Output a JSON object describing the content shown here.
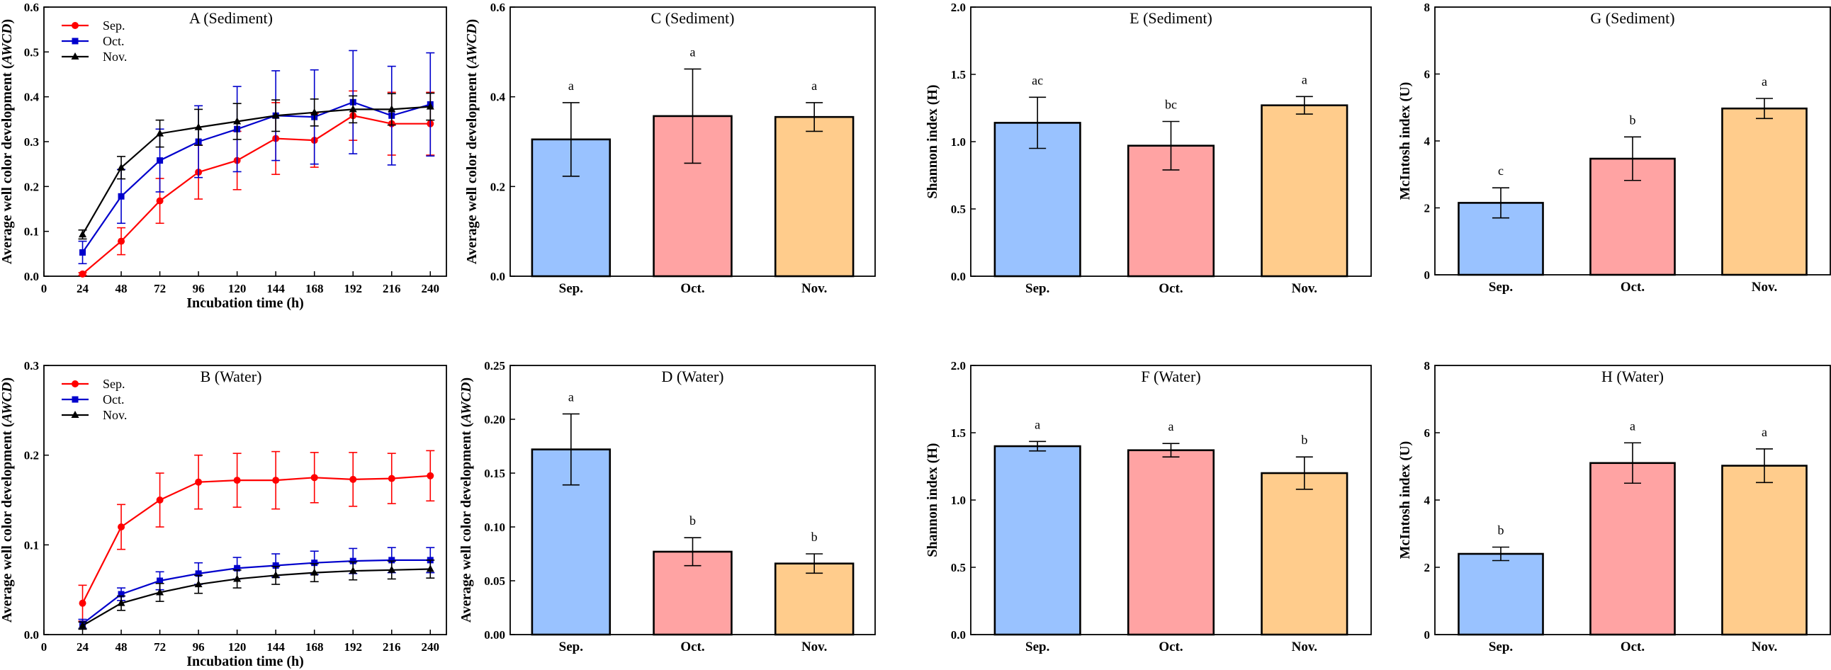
{
  "colors": {
    "sep": "#ff0000",
    "oct": "#0000cc",
    "nov": "#000000",
    "bar_sep": "#99c2ff",
    "bar_oct": "#ffa3a3",
    "bar_nov": "#ffcc8c"
  },
  "chart_data": [
    {
      "id": "A",
      "type": "line",
      "title": "A (Sediment)",
      "xlabel": "Incubation time (h)",
      "ylabel_main": "Average well color development (",
      "ylabel_italic": "AWCD",
      "ylabel_close": ")",
      "x": [
        24,
        48,
        72,
        96,
        120,
        144,
        168,
        192,
        216,
        240
      ],
      "xlim": [
        0,
        250
      ],
      "ylim": [
        0,
        0.6
      ],
      "xticks": [
        "0",
        "24",
        "48",
        "72",
        "96",
        "120",
        "144",
        "168",
        "192",
        "216",
        "240"
      ],
      "yticks": [
        "0.0",
        "0.1",
        "0.2",
        "0.3",
        "0.4",
        "0.5",
        "0.6"
      ],
      "series": [
        {
          "name": "Sep.",
          "color_key": "sep",
          "marker": "circle",
          "values": [
            0.005,
            0.078,
            0.168,
            0.232,
            0.258,
            0.307,
            0.303,
            0.358,
            0.34,
            0.34
          ],
          "errors": [
            0.003,
            0.03,
            0.05,
            0.06,
            0.065,
            0.08,
            0.06,
            0.055,
            0.07,
            0.07
          ]
        },
        {
          "name": "Oct.",
          "color_key": "oct",
          "marker": "square",
          "values": [
            0.053,
            0.178,
            0.258,
            0.3,
            0.328,
            0.358,
            0.355,
            0.388,
            0.358,
            0.383
          ],
          "errors": [
            0.025,
            0.06,
            0.07,
            0.08,
            0.095,
            0.1,
            0.105,
            0.115,
            0.11,
            0.115
          ]
        },
        {
          "name": "Nov.",
          "color_key": "nov",
          "marker": "triangle",
          "values": [
            0.093,
            0.242,
            0.318,
            0.332,
            0.345,
            0.358,
            0.365,
            0.372,
            0.372,
            0.378
          ],
          "errors": [
            0.01,
            0.025,
            0.03,
            0.04,
            0.04,
            0.035,
            0.03,
            0.03,
            0.035,
            0.03
          ]
        }
      ]
    },
    {
      "id": "B",
      "type": "line",
      "title": "B (Water)",
      "xlabel": "Incubation time (h)",
      "ylabel_main": "Average well color development (",
      "ylabel_italic": "AWCD",
      "ylabel_close": ")",
      "x": [
        24,
        48,
        72,
        96,
        120,
        144,
        168,
        192,
        216,
        240
      ],
      "xlim": [
        0,
        250
      ],
      "ylim": [
        0,
        0.3
      ],
      "xticks": [
        "0",
        "24",
        "48",
        "72",
        "96",
        "120",
        "144",
        "168",
        "192",
        "216",
        "240"
      ],
      "yticks": [
        "0.0",
        "0.1",
        "0.2",
        "0.3"
      ],
      "series": [
        {
          "name": "Sep.",
          "color_key": "sep",
          "marker": "circle",
          "values": [
            0.035,
            0.12,
            0.15,
            0.17,
            0.172,
            0.172,
            0.175,
            0.173,
            0.174,
            0.177
          ],
          "errors": [
            0.02,
            0.025,
            0.03,
            0.03,
            0.03,
            0.032,
            0.028,
            0.03,
            0.028,
            0.028
          ]
        },
        {
          "name": "Oct.",
          "color_key": "oct",
          "marker": "square",
          "values": [
            0.012,
            0.045,
            0.06,
            0.068,
            0.074,
            0.077,
            0.08,
            0.082,
            0.083,
            0.083
          ],
          "errors": [
            0.005,
            0.007,
            0.01,
            0.012,
            0.012,
            0.013,
            0.013,
            0.014,
            0.014,
            0.014
          ]
        },
        {
          "name": "Nov.",
          "color_key": "nov",
          "marker": "triangle",
          "values": [
            0.01,
            0.035,
            0.047,
            0.056,
            0.062,
            0.066,
            0.069,
            0.071,
            0.072,
            0.073
          ],
          "errors": [
            0.004,
            0.008,
            0.01,
            0.01,
            0.01,
            0.01,
            0.01,
            0.01,
            0.01,
            0.01
          ]
        }
      ]
    },
    {
      "id": "C",
      "type": "bar",
      "title": "C (Sediment)",
      "ylabel_main": "Average well color development (",
      "ylabel_italic": "AWCD",
      "ylabel_close": ")",
      "categories": [
        "Sep.",
        "Oct.",
        "Nov."
      ],
      "values": [
        0.305,
        0.357,
        0.355
      ],
      "errors": [
        0.082,
        0.105,
        0.032
      ],
      "letters": [
        "a",
        "a",
        "a"
      ],
      "ylim": [
        0,
        0.6
      ],
      "yticks": [
        "0.0",
        "0.2",
        "0.4",
        "0.6"
      ]
    },
    {
      "id": "D",
      "type": "bar",
      "title": "D (Water)",
      "ylabel_main": "Average well color development (",
      "ylabel_italic": "AWCD",
      "ylabel_close": ")",
      "categories": [
        "Sep.",
        "Oct.",
        "Nov."
      ],
      "values": [
        0.172,
        0.077,
        0.066
      ],
      "errors": [
        0.033,
        0.013,
        0.009
      ],
      "letters": [
        "a",
        "b",
        "b"
      ],
      "ylim": [
        0,
        0.25
      ],
      "yticks": [
        "0.00",
        "0.05",
        "0.10",
        "0.15",
        "0.20",
        "0.25"
      ]
    },
    {
      "id": "E",
      "type": "bar",
      "title": "E (Sediment)",
      "ylabel_main": "Shannon index (H)",
      "ylabel_italic": "",
      "ylabel_close": "",
      "categories": [
        "Sep.",
        "Oct.",
        "Nov."
      ],
      "values": [
        1.14,
        0.97,
        1.27
      ],
      "errors": [
        0.19,
        0.18,
        0.065
      ],
      "letters": [
        "ac",
        "bc",
        "a"
      ],
      "ylim": [
        0,
        2.0
      ],
      "yticks": [
        "0.0",
        "0.5",
        "1.0",
        "1.5",
        "2.0"
      ]
    },
    {
      "id": "F",
      "type": "bar",
      "title": "F (Water)",
      "ylabel_main": "Shannon index (H)",
      "ylabel_italic": "",
      "ylabel_close": "",
      "categories": [
        "Sep.",
        "Oct.",
        "Nov."
      ],
      "values": [
        1.4,
        1.37,
        1.2
      ],
      "errors": [
        0.035,
        0.05,
        0.12
      ],
      "letters": [
        "a",
        "a",
        "b"
      ],
      "ylim": [
        0,
        2.0
      ],
      "yticks": [
        "0.0",
        "0.5",
        "1.0",
        "1.5",
        "2.0"
      ]
    },
    {
      "id": "G",
      "type": "bar",
      "title": "G (Sediment)",
      "ylabel_main": "McIntosh index (U)",
      "ylabel_italic": "",
      "ylabel_close": "",
      "categories": [
        "Sep.",
        "Oct.",
        "Nov."
      ],
      "values": [
        2.15,
        3.47,
        4.97
      ],
      "errors": [
        0.45,
        0.65,
        0.3
      ],
      "letters": [
        "c",
        "b",
        "a"
      ],
      "ylim": [
        0,
        8
      ],
      "yticks": [
        "0",
        "2",
        "4",
        "6",
        "8"
      ]
    },
    {
      "id": "H",
      "type": "bar",
      "title": "H (Water)",
      "ylabel_main": "McIntosh index (U)",
      "ylabel_italic": "",
      "ylabel_close": "",
      "categories": [
        "Sep.",
        "Oct.",
        "Nov."
      ],
      "values": [
        2.4,
        5.1,
        5.02
      ],
      "errors": [
        0.2,
        0.6,
        0.5
      ],
      "letters": [
        "b",
        "a",
        "a"
      ],
      "ylim": [
        0,
        8
      ],
      "yticks": [
        "0",
        "2",
        "4",
        "6",
        "8"
      ]
    }
  ]
}
